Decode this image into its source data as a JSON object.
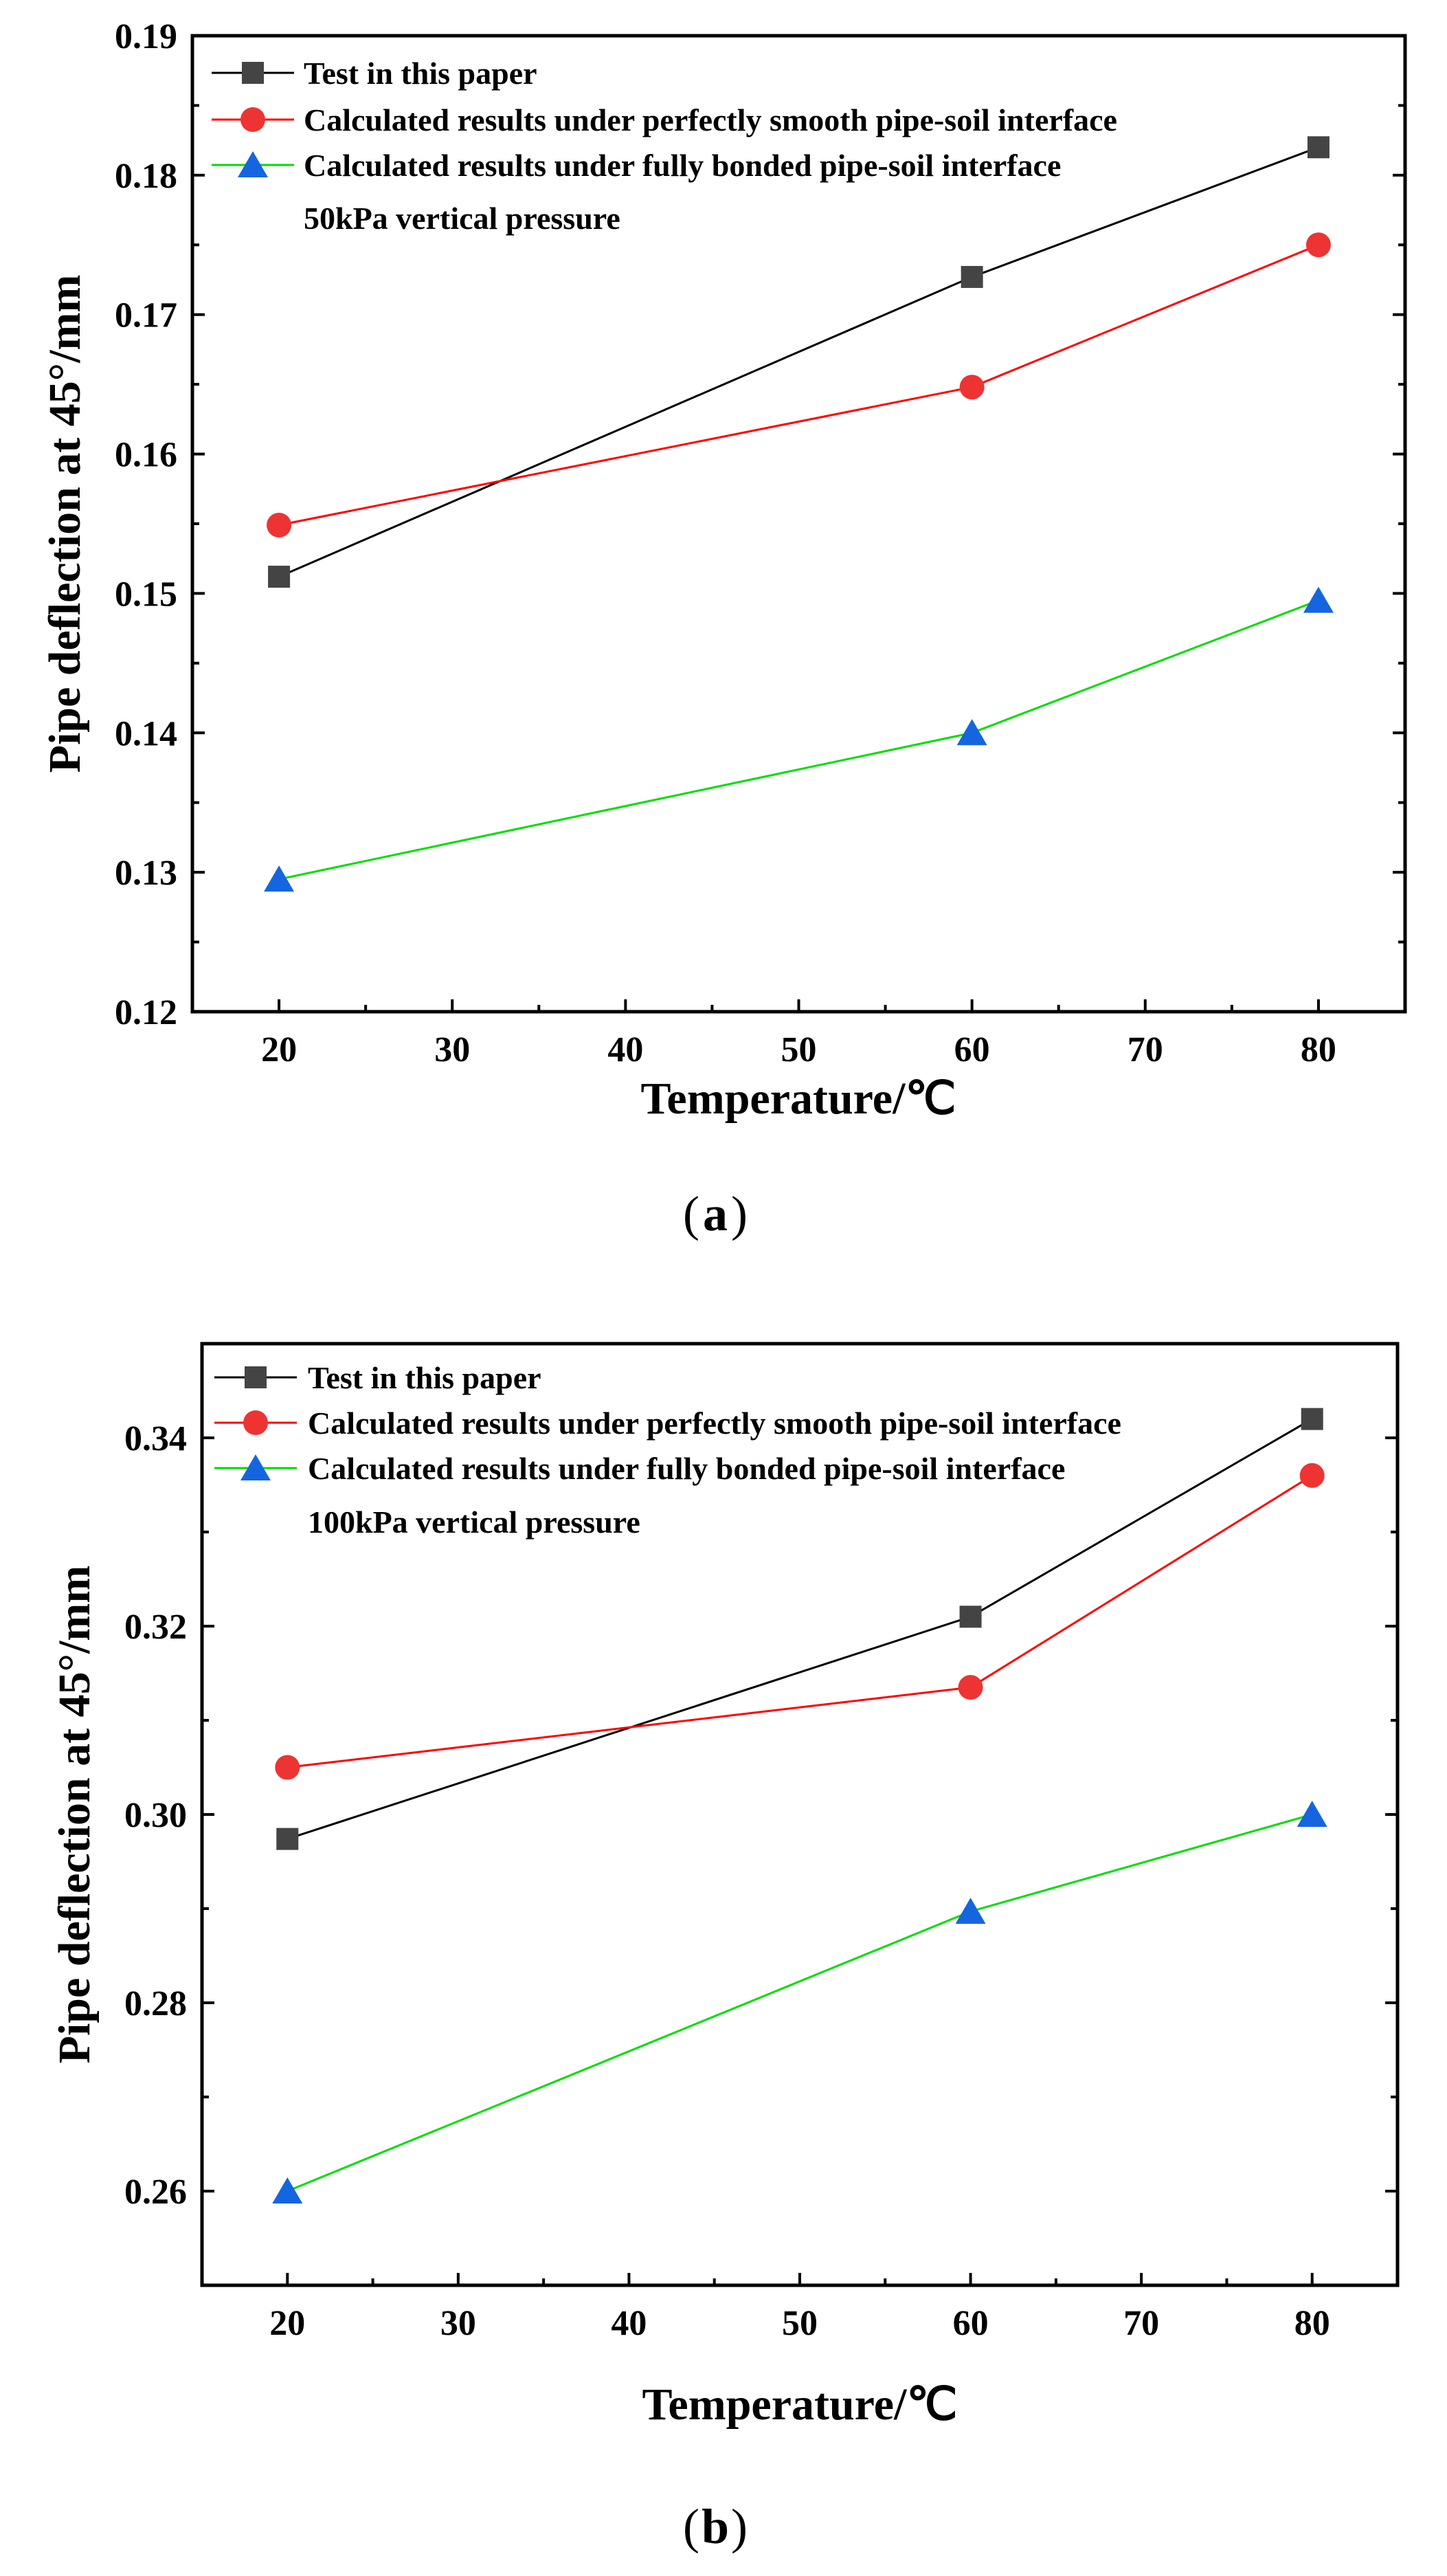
{
  "chart_data": [
    {
      "type": "line",
      "panel": "a",
      "caption_letter": "a",
      "xlabel": "Temperature/℃",
      "ylabel": "Pipe deflection at 45°/mm",
      "xlim": [
        15,
        85
      ],
      "ylim": [
        0.12,
        0.19
      ],
      "xticks": [
        20,
        30,
        40,
        50,
        60,
        70,
        80
      ],
      "yticks": [
        0.12,
        0.13,
        0.14,
        0.15,
        0.16,
        0.17,
        0.18,
        0.19
      ],
      "ytick_labels": [
        "0.12",
        "0.13",
        "0.14",
        "0.15",
        "0.16",
        "0.17",
        "0.18",
        "0.19"
      ],
      "annotation": "50kPa vertical pressure",
      "x": [
        20,
        60,
        80
      ],
      "series": [
        {
          "name": "Test in this paper",
          "marker": "square",
          "line_color": "#000000",
          "marker_color": "#444444",
          "values": [
            0.1512,
            0.1727,
            0.182
          ]
        },
        {
          "name": "Calculated results under perfectly smooth pipe-soil interface",
          "marker": "circle",
          "line_color": "#ff0000",
          "marker_color": "#ee3333",
          "values": [
            0.1549,
            0.1648,
            0.175
          ]
        },
        {
          "name": "Calculated results under fully bonded pipe-soil interface",
          "marker": "triangle",
          "line_color": "#00dd00",
          "marker_color": "#1565e0",
          "values": [
            0.1295,
            0.14,
            0.1495
          ]
        }
      ]
    },
    {
      "type": "line",
      "panel": "b",
      "caption_letter": "b",
      "xlabel": "Temperature/℃",
      "ylabel": "Pipe deflection at 45°/mm",
      "xlim": [
        15,
        85
      ],
      "ylim": [
        0.25,
        0.35
      ],
      "xticks": [
        20,
        30,
        40,
        50,
        60,
        70,
        80
      ],
      "yticks": [
        0.26,
        0.28,
        0.3,
        0.32,
        0.34
      ],
      "ytick_labels": [
        "0.26",
        "0.28",
        "0.30",
        "0.32",
        "0.34"
      ],
      "minor_yticks": [
        0.25,
        0.27,
        0.29,
        0.31,
        0.33,
        0.35
      ],
      "annotation": "100kPa vertical pressure",
      "x": [
        20,
        60,
        80
      ],
      "series": [
        {
          "name": "Test in this paper",
          "marker": "square",
          "line_color": "#000000",
          "marker_color": "#444444",
          "values": [
            0.2974,
            0.321,
            0.342
          ]
        },
        {
          "name": "Calculated results under perfectly smooth pipe-soil interface",
          "marker": "circle",
          "line_color": "#ff0000",
          "marker_color": "#ee3333",
          "values": [
            0.305,
            0.3135,
            0.336
          ]
        },
        {
          "name": "Calculated results under fully bonded pipe-soil interface",
          "marker": "triangle",
          "line_color": "#00dd00",
          "marker_color": "#1565e0",
          "values": [
            0.26,
            0.2897,
            0.3
          ]
        }
      ]
    }
  ]
}
